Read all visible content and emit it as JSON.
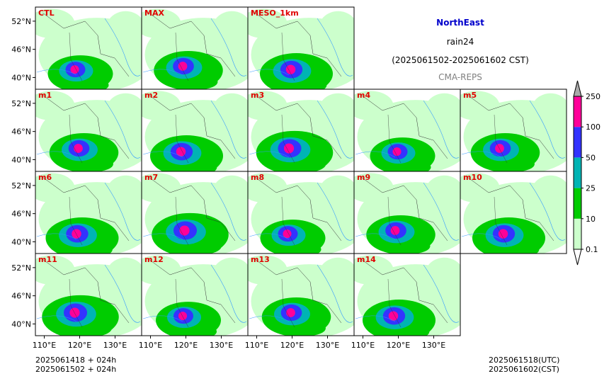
{
  "header": {
    "region": "NorthEast",
    "variable": "rain24",
    "period": "(2025061502-2025061602 CST)",
    "system": "CMA-REPS",
    "region_color": "#0000cc",
    "system_color": "#808080"
  },
  "footer": {
    "left_line1": "2025061418  +  024h",
    "left_line2": "2025061502  +  024h",
    "right_line1": "2025061518(UTC)",
    "right_line2": "2025061602(CST)"
  },
  "chart_data": {
    "type": "heatmap",
    "panel_rows": [
      [
        "CTL",
        "MAX",
        "MESO_1km"
      ],
      [
        "m1",
        "m2",
        "m3",
        "m4",
        "m5"
      ],
      [
        "m6",
        "m7",
        "m8",
        "m9",
        "m10"
      ],
      [
        "m11",
        "m12",
        "m13",
        "m14"
      ]
    ],
    "lat_ticks": [
      "52°N",
      "46°N",
      "40°N"
    ],
    "lat_values": [
      52,
      46,
      40
    ],
    "lon_ticks": [
      "110°E",
      "120°E",
      "130°E"
    ],
    "lon_values": [
      110,
      120,
      130
    ],
    "xlim": [
      107.5,
      137.5
    ],
    "ylim": [
      37.5,
      55.0
    ],
    "colorbar": {
      "levels": [
        "0.1",
        "10",
        "25",
        "50",
        "100",
        "250"
      ],
      "colors": [
        "#ccffcc",
        "#00cc00",
        "#00b4b4",
        "#3333ff",
        "#ff0099"
      ],
      "under_color": "#ffffff",
      "over_color": "#aaaaaa"
    },
    "precip_center": {
      "lon": 119.5,
      "lat": 42.0
    }
  }
}
